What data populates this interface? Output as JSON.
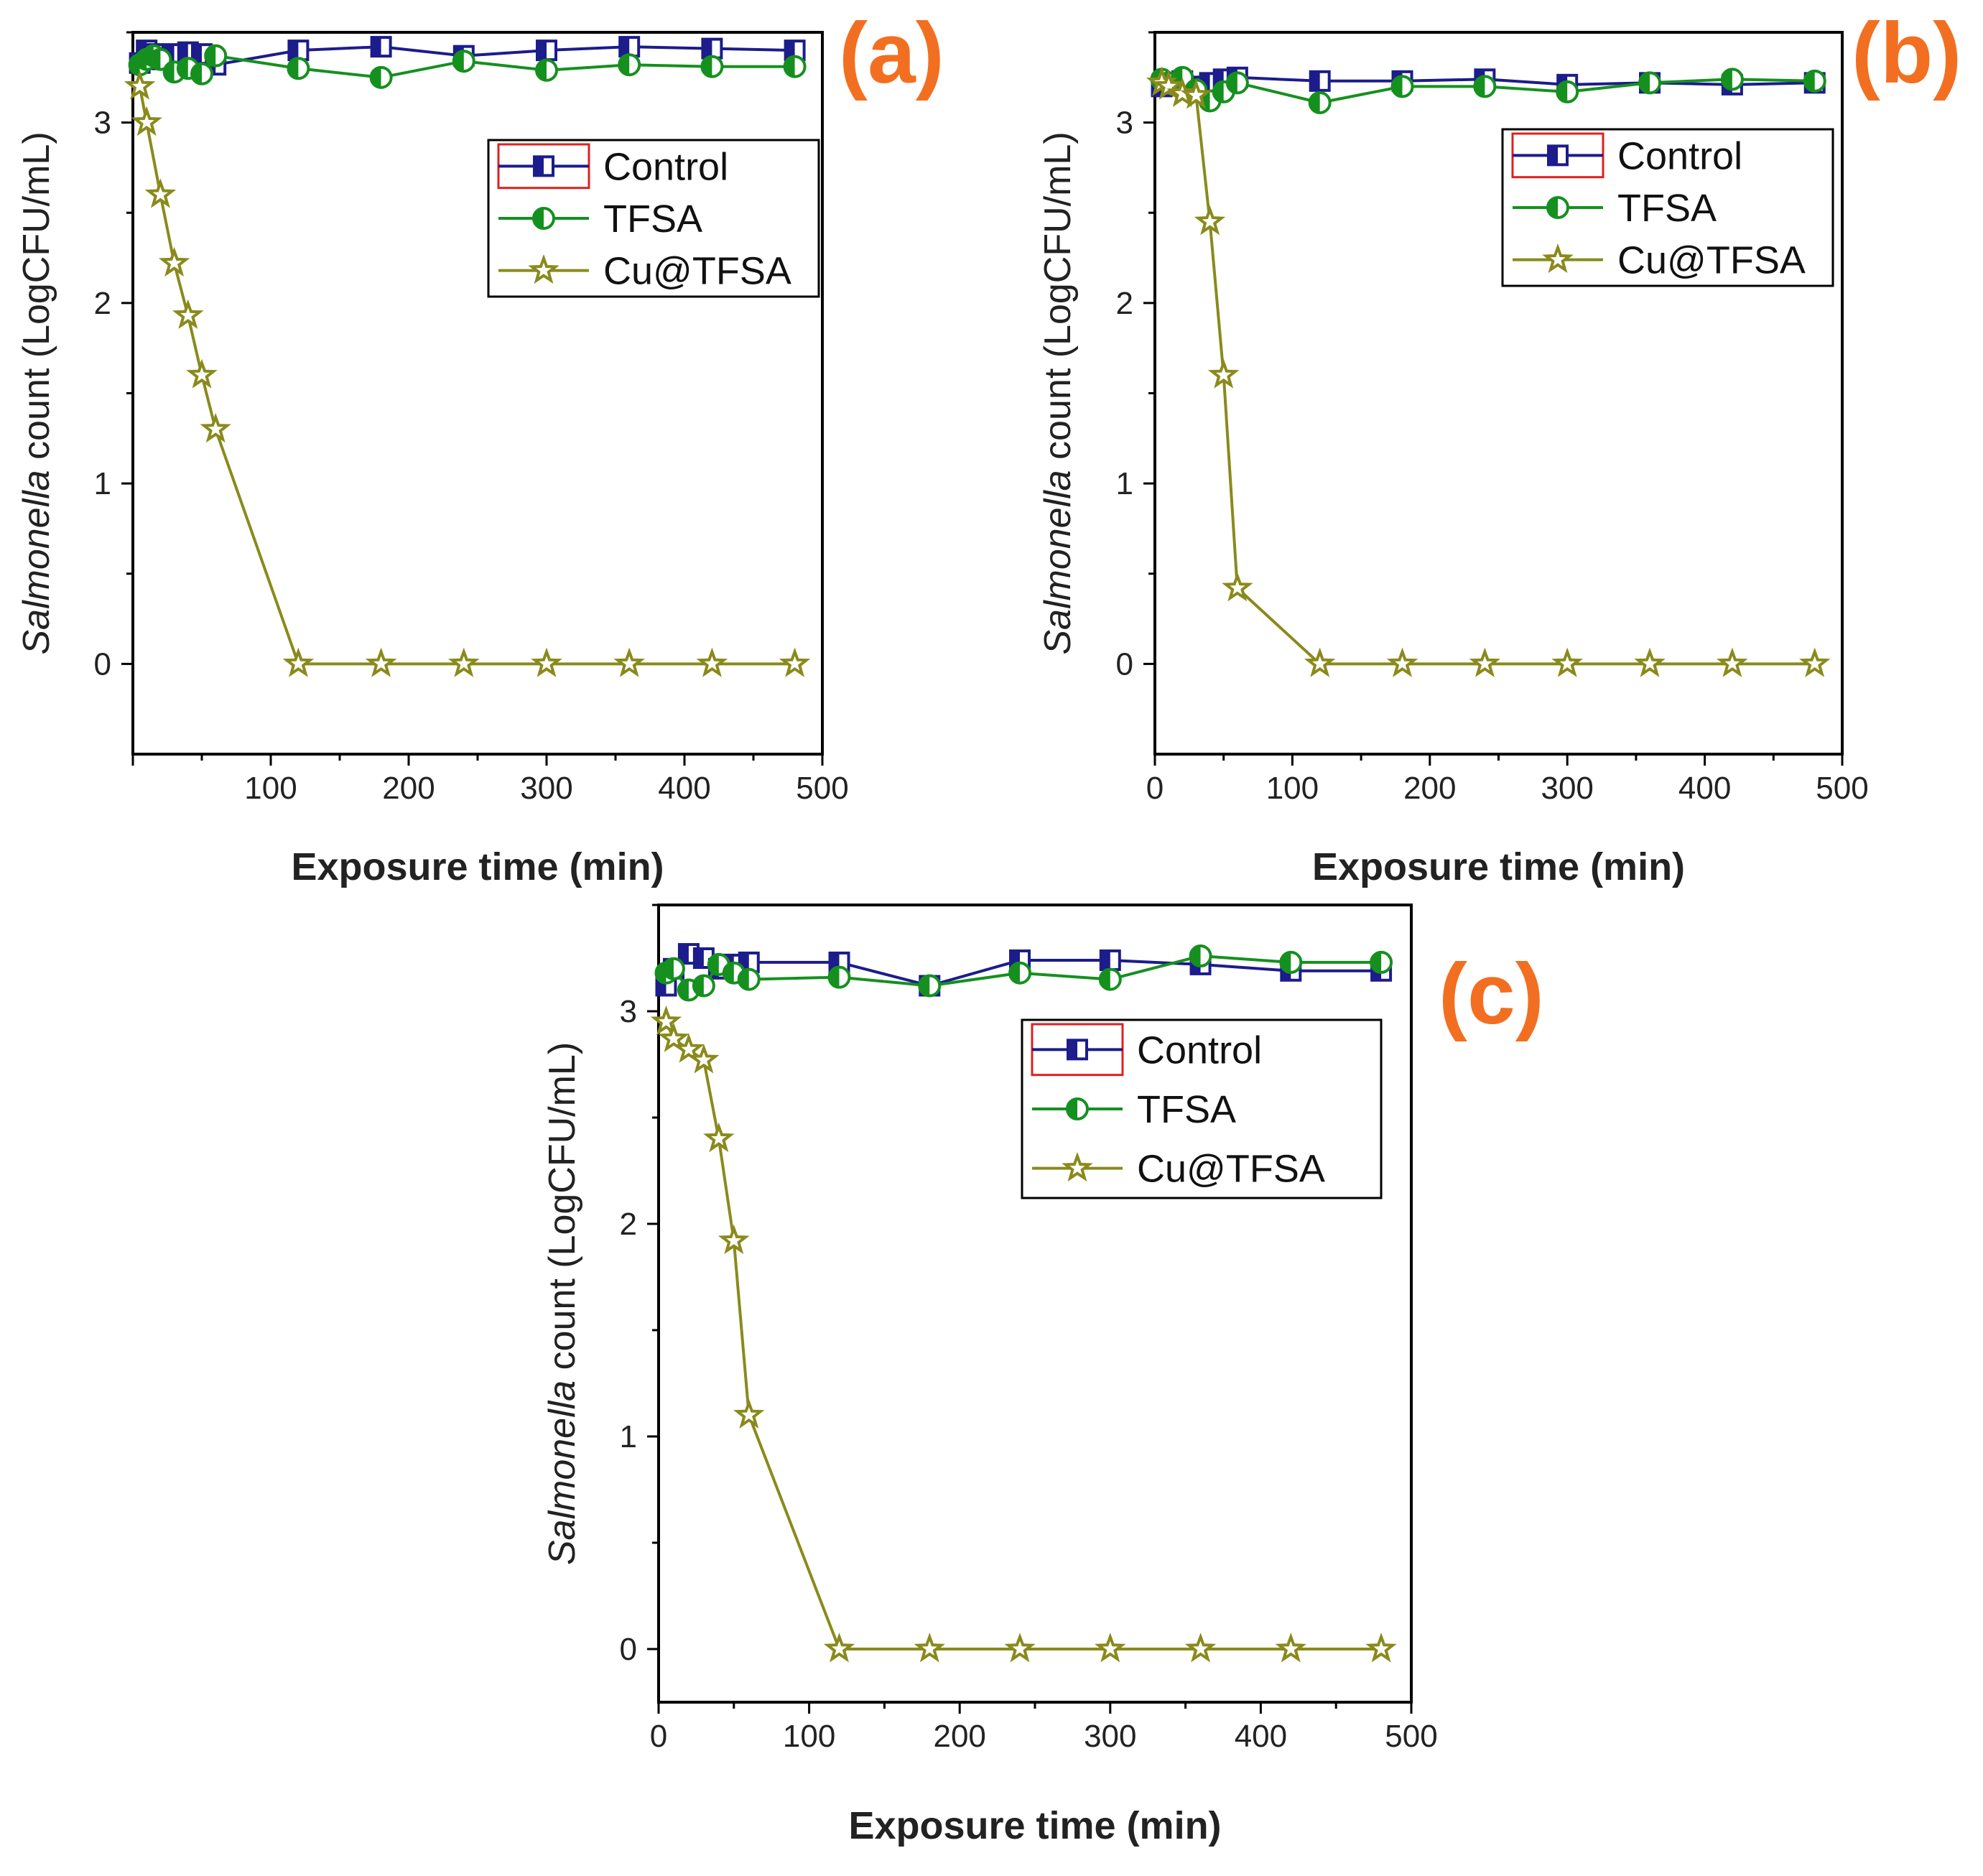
{
  "colors": {
    "control": "#1c1c8c",
    "tfsa": "#15901f",
    "cu_tfsa": "#8a8a1c",
    "panel_label": "#f26f21",
    "legend_swatch_box": "#e02020"
  },
  "chart_data": [
    {
      "panel": "(a)",
      "type": "line",
      "xlabel": "Exposure time (min)",
      "ylabel_italic": "Salmonella",
      "ylabel_rest": " count (LogCFU/mL)",
      "xlim": [
        0,
        500
      ],
      "ylim": [
        -0.5,
        3.5
      ],
      "xticks": [
        100,
        200,
        300,
        400,
        500
      ],
      "yticks": [
        0,
        1,
        2,
        3
      ],
      "legend": [
        "Control",
        "TFSA",
        "Cu@TFSA"
      ],
      "series": [
        {
          "name": "Control",
          "marker": "square",
          "x": [
            5,
            10,
            15,
            20,
            30,
            40,
            50,
            60,
            120,
            180,
            240,
            300,
            360,
            420,
            480
          ],
          "y": [
            3.33,
            3.4,
            3.38,
            3.35,
            3.38,
            3.39,
            3.38,
            3.32,
            3.4,
            3.42,
            3.37,
            3.4,
            3.42,
            3.41,
            3.4
          ]
        },
        {
          "name": "TFSA",
          "marker": "circle",
          "x": [
            5,
            10,
            15,
            20,
            30,
            40,
            50,
            60,
            120,
            180,
            240,
            300,
            360,
            420,
            480
          ],
          "y": [
            3.32,
            3.35,
            3.37,
            3.35,
            3.28,
            3.3,
            3.27,
            3.37,
            3.3,
            3.25,
            3.34,
            3.29,
            3.32,
            3.31,
            3.31
          ]
        },
        {
          "name": "Cu@TFSA",
          "marker": "star",
          "x": [
            5,
            10,
            20,
            30,
            40,
            50,
            60,
            120,
            180,
            240,
            300,
            360,
            420,
            480
          ],
          "y": [
            3.2,
            3.0,
            2.6,
            2.22,
            1.93,
            1.6,
            1.3,
            0,
            0,
            0,
            0,
            0,
            0,
            0
          ]
        }
      ]
    },
    {
      "panel": "(b)",
      "type": "line",
      "xlabel": "Exposure time (min)",
      "ylabel_italic": "Salmonella",
      "ylabel_rest": " count (LogCFU/mL)",
      "xlim": [
        0,
        500
      ],
      "ylim": [
        -0.5,
        3.5
      ],
      "xticks": [
        0,
        100,
        200,
        300,
        400,
        500
      ],
      "yticks": [
        0,
        1,
        2,
        3
      ],
      "legend": [
        "Control",
        "TFSA",
        "Cu@TFSA"
      ],
      "series": [
        {
          "name": "Control",
          "marker": "square",
          "x": [
            5,
            10,
            20,
            30,
            40,
            50,
            60,
            120,
            180,
            240,
            300,
            360,
            420,
            480
          ],
          "y": [
            3.2,
            3.22,
            3.23,
            3.2,
            3.22,
            3.24,
            3.25,
            3.23,
            3.23,
            3.24,
            3.21,
            3.22,
            3.21,
            3.22
          ]
        },
        {
          "name": "TFSA",
          "marker": "circle",
          "x": [
            5,
            10,
            20,
            30,
            40,
            50,
            60,
            120,
            180,
            240,
            300,
            360,
            420,
            480
          ],
          "y": [
            3.24,
            3.22,
            3.25,
            3.18,
            3.12,
            3.17,
            3.22,
            3.11,
            3.2,
            3.2,
            3.17,
            3.22,
            3.24,
            3.23
          ]
        },
        {
          "name": "Cu@TFSA",
          "marker": "star",
          "x": [
            5,
            10,
            20,
            30,
            40,
            50,
            60,
            120,
            180,
            240,
            300,
            360,
            420,
            480
          ],
          "y": [
            3.22,
            3.2,
            3.16,
            3.15,
            2.45,
            1.6,
            0.42,
            0,
            0,
            0,
            0,
            0,
            0,
            0
          ]
        }
      ]
    },
    {
      "panel": "(c)",
      "type": "line",
      "xlabel": "Exposure time (min)",
      "ylabel_italic": "Salmonella",
      "ylabel_rest": " count (LogCFU/mL)",
      "xlim": [
        0,
        500
      ],
      "ylim": [
        -0.25,
        3.5
      ],
      "xticks": [
        0,
        100,
        200,
        300,
        400,
        500
      ],
      "yticks": [
        0,
        1,
        2,
        3
      ],
      "legend": [
        "Control",
        "TFSA",
        "Cu@TFSA"
      ],
      "series": [
        {
          "name": "Control",
          "marker": "square",
          "x": [
            5,
            10,
            20,
            30,
            40,
            50,
            60,
            120,
            180,
            240,
            300,
            360,
            420,
            480
          ],
          "y": [
            3.12,
            3.2,
            3.27,
            3.25,
            3.2,
            3.22,
            3.23,
            3.23,
            3.12,
            3.24,
            3.24,
            3.22,
            3.19,
            3.19
          ]
        },
        {
          "name": "TFSA",
          "marker": "circle",
          "x": [
            5,
            10,
            20,
            30,
            40,
            50,
            60,
            120,
            180,
            240,
            300,
            360,
            420,
            480
          ],
          "y": [
            3.18,
            3.2,
            3.1,
            3.12,
            3.22,
            3.18,
            3.15,
            3.16,
            3.12,
            3.18,
            3.15,
            3.26,
            3.23,
            3.23
          ]
        },
        {
          "name": "Cu@TFSA",
          "marker": "star",
          "x": [
            5,
            10,
            20,
            30,
            40,
            50,
            60,
            120,
            180,
            240,
            300,
            360,
            420,
            480
          ],
          "y": [
            2.95,
            2.87,
            2.82,
            2.77,
            2.4,
            1.92,
            1.1,
            0,
            0,
            0,
            0,
            0,
            0,
            0
          ]
        }
      ]
    }
  ]
}
